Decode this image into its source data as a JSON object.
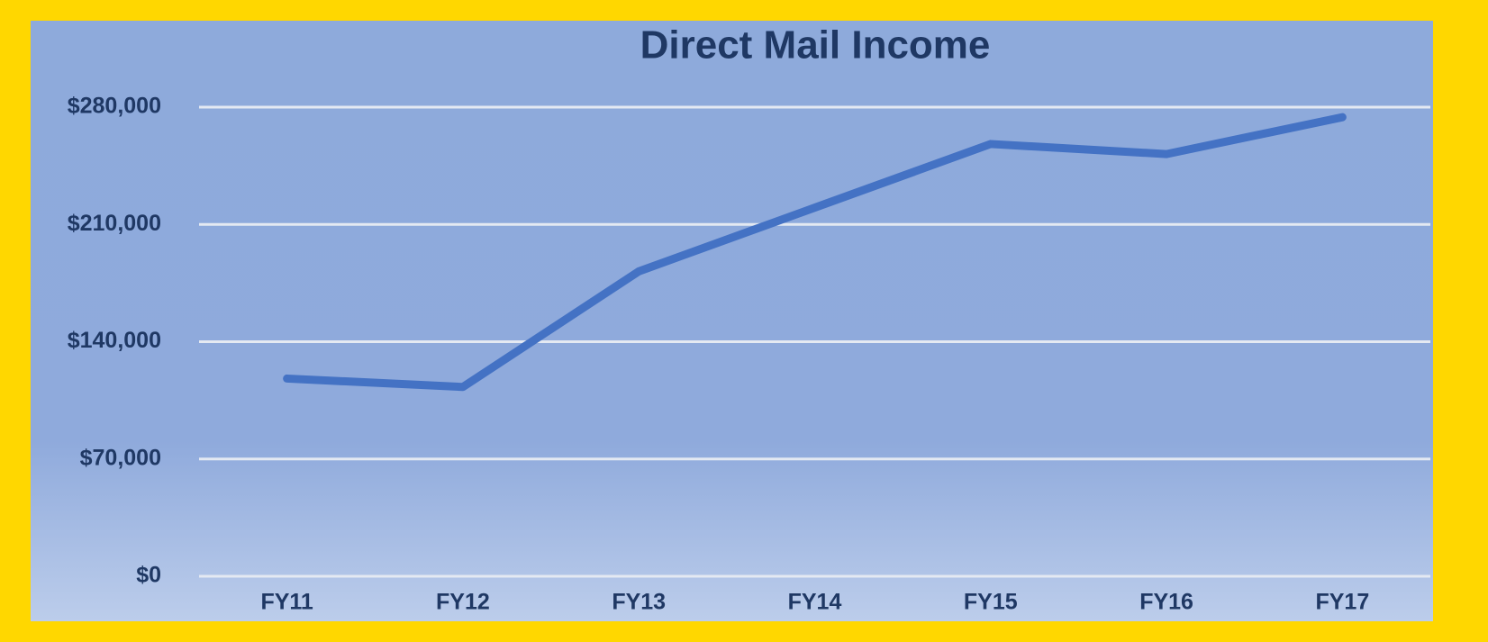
{
  "chart_data": {
    "type": "line",
    "title": "Direct Mail Income",
    "categories": [
      "FY11",
      "FY12",
      "FY13",
      "FY14",
      "FY15",
      "FY16",
      "FY17"
    ],
    "series": [
      {
        "name": "Direct Mail Income",
        "color": "#4472c4",
        "values": [
          118000,
          113000,
          182000,
          220000,
          258000,
          252000,
          274000
        ]
      }
    ],
    "ylim": [
      0,
      280000
    ],
    "yticks": [
      {
        "value": 0,
        "label": "$0"
      },
      {
        "value": 70000,
        "label": "$70,000"
      },
      {
        "value": 140000,
        "label": "$140,000"
      },
      {
        "value": 210000,
        "label": "$210,000"
      },
      {
        "value": 280000,
        "label": "$280,000"
      }
    ],
    "grid": true
  }
}
